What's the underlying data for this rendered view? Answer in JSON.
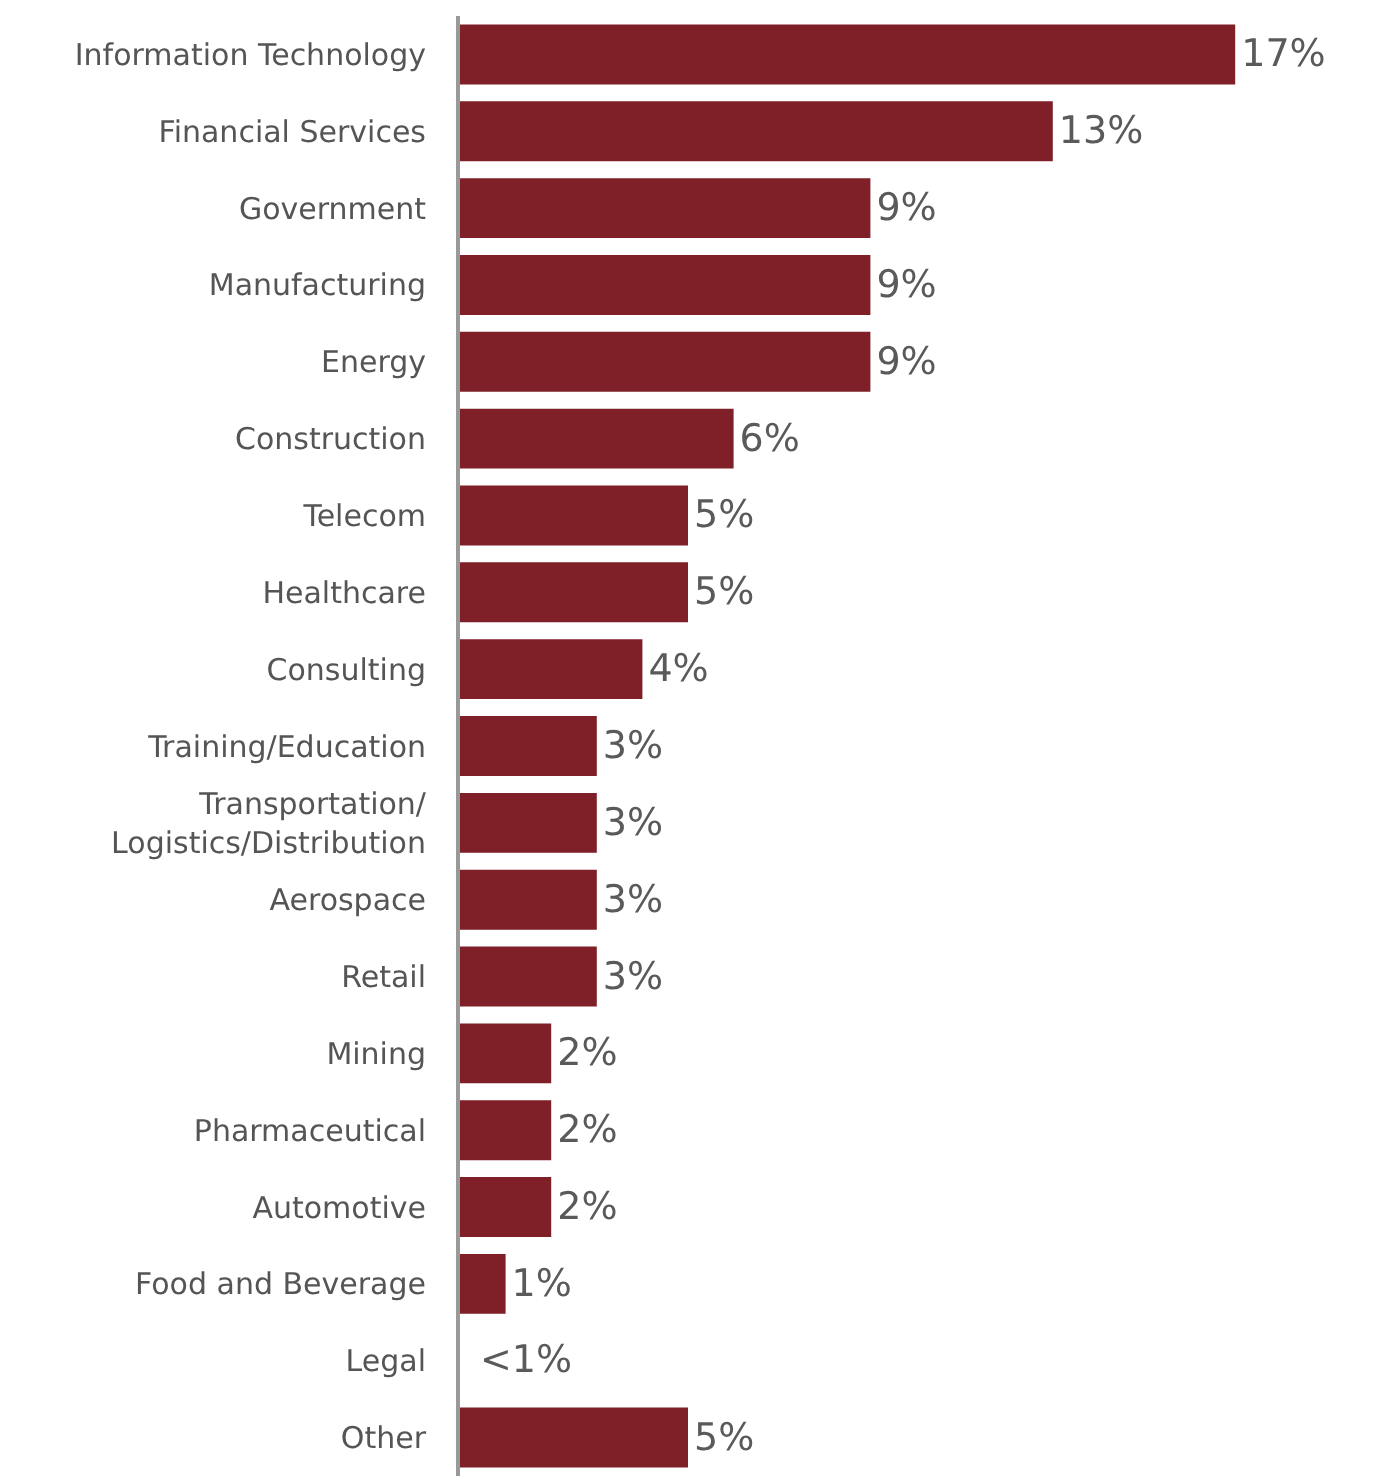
{
  "chart_data": {
    "type": "bar",
    "orientation": "horizontal",
    "categories": [
      "Information Technology",
      "Financial Services",
      "Government",
      "Manufacturing",
      "Energy",
      "Construction",
      "Telecom",
      "Healthcare",
      "Consulting",
      "Training/Education",
      "Transportation/\nLogistics/Distribution",
      "Aerospace",
      "Retail",
      "Mining",
      "Pharmaceutical",
      "Automotive",
      "Food and Beverage",
      "Legal",
      "Other"
    ],
    "values": [
      17,
      13,
      9,
      9,
      9,
      6,
      5,
      5,
      4,
      3,
      3,
      3,
      3,
      2,
      2,
      2,
      1,
      null,
      5
    ],
    "value_labels": [
      "17%",
      "13%",
      "9%",
      "9%",
      "9%",
      "6%",
      "5%",
      "5%",
      "4%",
      "3%",
      "3%",
      "3%",
      "3%",
      "2%",
      "2%",
      "2%",
      "1%",
      "<1%",
      "5%"
    ],
    "color": "#7f1f28",
    "legend": false
  }
}
